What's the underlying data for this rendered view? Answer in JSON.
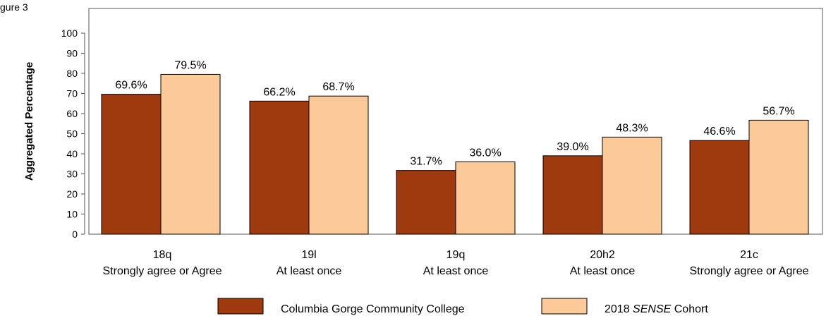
{
  "figure_label": "gure 3",
  "chart_data": {
    "type": "bar",
    "ylabel": "Aggregated Percentage",
    "ylim": [
      0,
      100
    ],
    "yticks": [
      0,
      10,
      20,
      30,
      40,
      50,
      60,
      70,
      80,
      90,
      100
    ],
    "categories": [
      {
        "code": "18q",
        "label": "Strongly agree or Agree"
      },
      {
        "code": "19l",
        "label": "At least once"
      },
      {
        "code": "19q",
        "label": "At least once"
      },
      {
        "code": "20h2",
        "label": "At least once"
      },
      {
        "code": "21c",
        "label": "Strongly agree or Agree"
      }
    ],
    "series": [
      {
        "name": "Columbia Gorge Community College",
        "color": "#9E3A0E",
        "values": [
          69.6,
          66.2,
          31.7,
          39.0,
          46.6
        ],
        "labels": [
          "69.6%",
          "66.2%",
          "31.7%",
          "39.0%",
          "46.6%"
        ]
      },
      {
        "name_parts": [
          "2018 ",
          "SENSE",
          " Cohort"
        ],
        "color": "#FCC998",
        "values": [
          79.5,
          68.7,
          36.0,
          48.3,
          56.7
        ],
        "labels": [
          "79.5%",
          "68.7%",
          "36.0%",
          "48.3%",
          "56.7%"
        ]
      }
    ],
    "legend_position": "bottom",
    "grid": false
  }
}
